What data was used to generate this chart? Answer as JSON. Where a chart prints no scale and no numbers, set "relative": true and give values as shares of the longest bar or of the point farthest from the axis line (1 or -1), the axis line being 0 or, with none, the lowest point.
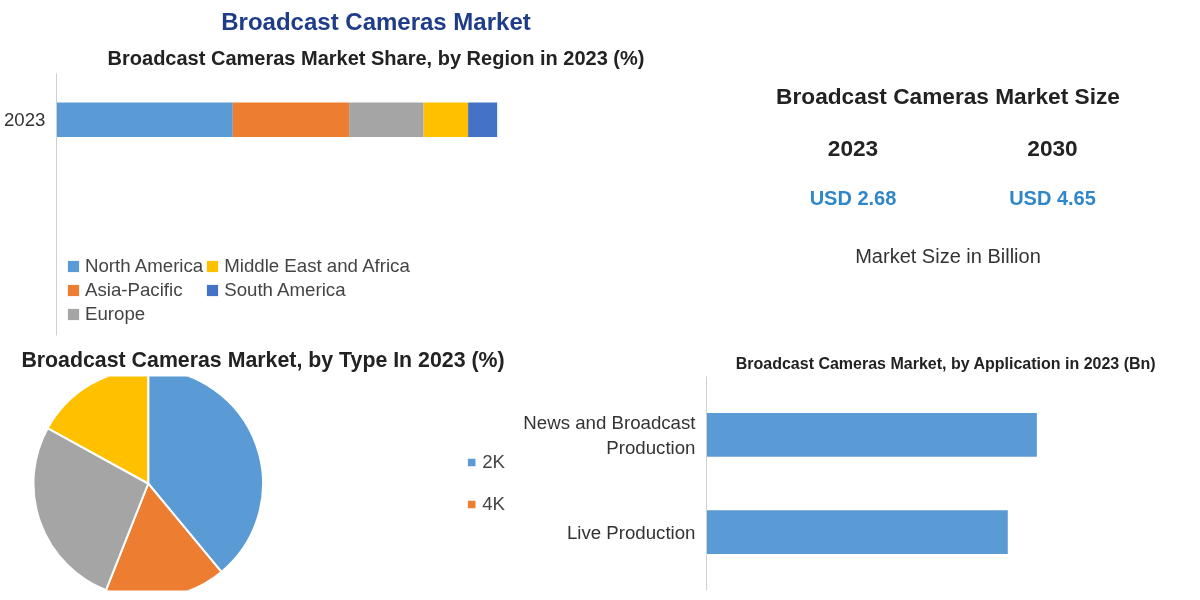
{
  "chart_data": [
    {
      "type": "bar",
      "title": "Broadcast Cameras Market",
      "subtitle": "Broadcast Cameras Market Share, by Region in 2023 (%)",
      "orientation": "horizontal",
      "stacked": true,
      "relative": true,
      "categories": [
        "2023"
      ],
      "legend": "bottom",
      "grid": false,
      "series": [
        {
          "name": "North America",
          "color": "#5b9bd5",
          "values": [
            0.4
          ]
        },
        {
          "name": "Asia-Pacific",
          "color": "#ed7d31",
          "values": [
            0.264
          ]
        },
        {
          "name": "Europe",
          "color": "#a5a5a5",
          "values": [
            0.169
          ]
        },
        {
          "name": "Middle East and Africa",
          "color": "#ffc000",
          "values": [
            0.101
          ]
        },
        {
          "name": "South America",
          "color": "#4472c4",
          "values": [
            0.066
          ]
        }
      ]
    },
    {
      "type": "other",
      "title": "Broadcast Cameras Market Size",
      "annotations": [
        "2023",
        "2030",
        "USD 2.68",
        "USD 4.65",
        "Market Size in Billion"
      ]
    },
    {
      "type": "pie",
      "title": "Broadcast Cameras Market, by Type In 2023 (%)",
      "categories": [
        "2K",
        "4K",
        null,
        null
      ],
      "values": [
        39,
        17,
        27,
        17
      ],
      "colors": [
        "#5b9bd5",
        "#ed7d31",
        "#a5a5a5",
        "#ffc000"
      ],
      "legend": "right"
    },
    {
      "type": "bar",
      "title": "Broadcast Cameras Market, by Application in 2023 (Bn)",
      "orientation": "horizontal",
      "relative": true,
      "categories": [
        "News and Broadcast Production",
        "Live Production"
      ],
      "values": [
        1.0,
        0.912
      ],
      "color": "#5b9bd5",
      "grid": false
    }
  ]
}
